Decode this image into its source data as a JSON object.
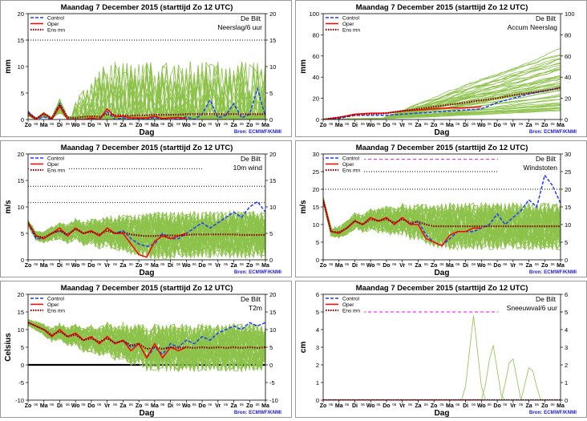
{
  "colors": {
    "background": "#ffffff",
    "panel_border": "#9a9a9a",
    "ensemble": "#8cc24a",
    "control": "#1e3cff",
    "oper": "#ff0000",
    "ensmean": "#8b0000",
    "threshold": "#ff00ff",
    "source": "#2222cc",
    "zero_line": "#000000"
  },
  "legend_labels": [
    "Control",
    "Oper",
    "Ens mn"
  ],
  "source": "Bron: ECMWF/KNMI",
  "xlabel": "Dag",
  "day_labels": [
    "Zo",
    "Ma",
    "Di",
    "Wo",
    "Do",
    "Vr",
    "Za",
    "Zo",
    "Ma",
    "Di",
    "Wo",
    "Do",
    "Vr",
    "Za",
    "Zo",
    "Ma"
  ],
  "sub_tick_label": "06",
  "chart_data": [
    {
      "id": "neerslag",
      "type": "line",
      "title": "Maandag   7 December  2015   (starttijd  Zo 12 UTC)",
      "station": "De Bilt",
      "parameter": "Neerslag/6 uur",
      "ylabel": "mm",
      "xlabel": "Dag",
      "ylim": [
        0,
        20
      ],
      "yticks": [
        0,
        5,
        10,
        15,
        20
      ],
      "hlines": [
        {
          "value": 15,
          "style": "dotted",
          "color": "#000000"
        }
      ],
      "ensemble_count": 50,
      "ensemble_style": "spiky",
      "series": [
        {
          "name": "Control",
          "x_days": [
            0,
            0.5,
            1,
            1.5,
            2,
            2.5,
            3,
            3.5,
            4,
            4.5,
            5,
            5.5,
            6,
            6.5,
            7,
            7.5,
            8,
            8.5,
            9,
            9.5,
            10,
            10.5,
            11,
            11.5,
            12,
            12.5,
            13,
            13.5,
            14,
            14.5,
            15
          ],
          "values": [
            1.5,
            0,
            0.5,
            0,
            3,
            0,
            0,
            0,
            0.2,
            0,
            1.5,
            0,
            0.3,
            0,
            0.2,
            0,
            0.4,
            0,
            0.3,
            0,
            0.5,
            0,
            1,
            3.7,
            0.3,
            0.8,
            3,
            0.3,
            1,
            5.8,
            0.6
          ]
        },
        {
          "name": "Oper",
          "x_days": [
            0,
            0.5,
            1,
            1.5,
            2,
            2.5,
            3,
            3.5,
            4,
            4.5,
            5,
            5.5,
            6,
            6.5,
            7,
            7.5,
            8,
            8.5,
            9,
            9.5,
            10
          ],
          "values": [
            1,
            0,
            1.2,
            0,
            2.5,
            0,
            0,
            0,
            0.3,
            0,
            2,
            0.5,
            0.6,
            0.3,
            0.3,
            0.3,
            0.6,
            0.2,
            0.3,
            0.4,
            0.2
          ]
        },
        {
          "name": "Ens mn",
          "x_days": [
            0,
            0.5,
            1,
            1.5,
            2,
            2.5,
            3,
            3.5,
            4,
            4.5,
            5,
            5.5,
            6,
            6.5,
            7,
            7.5,
            8,
            8.5,
            9,
            9.5,
            10,
            10.5,
            11,
            11.5,
            12,
            12.5,
            13,
            13.5,
            14,
            14.5,
            15
          ],
          "values": [
            1.2,
            0.2,
            1,
            0.3,
            2.8,
            0.4,
            0.3,
            0.5,
            0.6,
            0.5,
            1,
            0.8,
            0.8,
            0.7,
            0.8,
            0.8,
            0.9,
            0.9,
            0.9,
            0.9,
            1,
            1,
            1,
            1,
            1,
            1,
            1,
            1,
            1,
            1,
            1
          ]
        }
      ]
    },
    {
      "id": "accum",
      "type": "line",
      "title": "Maandag   7 December  2015   (starttijd  Zo 12 UTC)",
      "station": "De Bilt",
      "parameter": "Accum Neerslag",
      "ylabel": "mm",
      "xlabel": "Dag",
      "ylim": [
        0,
        100
      ],
      "yticks": [
        0,
        20,
        40,
        60,
        80,
        100
      ],
      "hlines": [],
      "ensemble_count": 50,
      "ensemble_style": "cumulative",
      "series": [
        {
          "name": "Control",
          "x_days": [
            0,
            1,
            2,
            3,
            4,
            5,
            6,
            7,
            8,
            9,
            10,
            11,
            12,
            13,
            14,
            15
          ],
          "values": [
            0,
            1,
            4,
            4,
            4,
            5,
            6,
            7,
            8,
            9,
            10,
            16,
            20,
            24,
            27,
            30
          ]
        },
        {
          "name": "Oper",
          "x_days": [
            0,
            1,
            2,
            3,
            4,
            5,
            6,
            7,
            8,
            9,
            10
          ],
          "values": [
            0,
            2,
            5,
            6,
            6,
            8,
            9,
            10,
            11,
            11,
            12
          ]
        },
        {
          "name": "Ens mn",
          "x_days": [
            0,
            1,
            2,
            3,
            4,
            5,
            6,
            7,
            8,
            9,
            10,
            11,
            12,
            13,
            14,
            15
          ],
          "values": [
            0,
            2,
            4,
            5,
            6,
            8,
            10,
            12,
            14,
            16,
            18,
            20,
            23,
            25,
            27,
            30
          ]
        }
      ]
    },
    {
      "id": "wind",
      "type": "line",
      "title": "Maandag   7 December  2015   (starttijd  Zo 12 UTC)",
      "station": "De Bilt",
      "parameter": "10m wind",
      "ylabel": "m/s",
      "xlabel": "Dag",
      "ylim": [
        0,
        20
      ],
      "yticks": [
        0,
        5,
        10,
        15,
        20
      ],
      "hlines": [
        {
          "value": 10.8,
          "style": "dotted",
          "color": "#000000"
        },
        {
          "value": 13.9,
          "style": "dotted",
          "color": "#000000"
        },
        {
          "value": 17.2,
          "style": "dotted",
          "color": "#000000"
        }
      ],
      "ensemble_count": 50,
      "ensemble_style": "noisy",
      "series": [
        {
          "name": "Control",
          "x_days": [
            0,
            0.5,
            1,
            1.5,
            2,
            2.5,
            3,
            3.5,
            4,
            4.5,
            5,
            5.5,
            6,
            6.5,
            7,
            7.5,
            8,
            8.5,
            9,
            9.5,
            10,
            10.5,
            11,
            11.5,
            12,
            12.5,
            13,
            13.5,
            14,
            14.5,
            15
          ],
          "values": [
            7,
            4,
            4,
            5,
            5.5,
            4.5,
            6,
            5,
            5.5,
            4.5,
            6,
            5,
            5.5,
            4,
            3,
            2.5,
            3,
            5,
            4,
            4,
            5,
            6,
            7,
            6,
            7,
            8,
            9,
            8,
            10,
            11,
            9
          ]
        },
        {
          "name": "Oper",
          "x_days": [
            0,
            0.5,
            1,
            1.5,
            2,
            2.5,
            3,
            3.5,
            4,
            4.5,
            5,
            5.5,
            6,
            6.5,
            7,
            7.5,
            8,
            8.5,
            9,
            9.5,
            10
          ],
          "values": [
            7,
            4.5,
            4,
            5,
            6,
            4.5,
            6,
            5,
            5.5,
            4.5,
            6,
            5,
            5,
            3,
            1,
            0.5,
            3.5,
            4.5,
            4,
            4.5,
            5
          ]
        },
        {
          "name": "Ens mn",
          "x_days": [
            0,
            0.5,
            1,
            1.5,
            2,
            2.5,
            3,
            3.5,
            4,
            4.5,
            5,
            5.5,
            6,
            6.5,
            7,
            7.5,
            8,
            8.5,
            9,
            9.5,
            10,
            10.5,
            11,
            11.5,
            12,
            12.5,
            13,
            13.5,
            14,
            14.5,
            15
          ],
          "values": [
            7,
            4.5,
            4.2,
            5,
            5.5,
            4.8,
            5.8,
            5,
            5.3,
            4.8,
            5.5,
            5,
            5.2,
            4.8,
            4.6,
            4.5,
            4.5,
            4.6,
            4.6,
            4.6,
            4.7,
            4.8,
            4.8,
            4.8,
            4.8,
            4.8,
            4.8,
            4.7,
            4.7,
            4.7,
            4.7
          ]
        }
      ]
    },
    {
      "id": "windstoten",
      "type": "line",
      "title": "Maandag   7 December  2015   (starttijd  Zo 12 UTC)",
      "station": "De Bilt",
      "parameter": "Windstoten",
      "ylabel": "m/s",
      "xlabel": "Dag",
      "ylim": [
        0,
        30
      ],
      "yticks": [
        0,
        5,
        10,
        15,
        20,
        25,
        30
      ],
      "hlines": [
        {
          "value": 20,
          "style": "dotted",
          "color": "#000000"
        },
        {
          "value": 25,
          "style": "dotted",
          "color": "#000000"
        },
        {
          "value": 28.5,
          "style": "dashed",
          "color": "#ff00ff"
        }
      ],
      "ensemble_count": 50,
      "ensemble_style": "noisy",
      "series": [
        {
          "name": "Control",
          "x_days": [
            0,
            0.5,
            1,
            1.5,
            2,
            2.5,
            3,
            3.5,
            4,
            4.5,
            5,
            5.5,
            6,
            6.5,
            7,
            7.5,
            8,
            8.5,
            9,
            9.5,
            10,
            10.5,
            11,
            11.5,
            12,
            12.5,
            13,
            13.5,
            14,
            14.5,
            15
          ],
          "values": [
            17,
            8,
            7.5,
            9,
            11,
            10,
            12,
            11,
            12,
            10,
            12,
            10,
            11,
            7,
            5,
            4,
            6,
            8,
            8,
            8,
            9,
            10,
            13,
            10,
            12,
            14,
            17,
            15,
            24,
            21,
            16
          ]
        },
        {
          "name": "Oper",
          "x_days": [
            0,
            0.5,
            1,
            1.5,
            2,
            2.5,
            3,
            3.5,
            4,
            4.5,
            5,
            5.5,
            6,
            6.5,
            7,
            7.5,
            8,
            8.5,
            9,
            9.5,
            10
          ],
          "values": [
            17,
            8,
            7.5,
            9,
            11,
            10,
            12,
            11,
            12,
            10,
            12,
            10,
            10,
            6,
            5,
            4,
            7,
            8,
            8,
            9,
            9
          ]
        },
        {
          "name": "Ens mn",
          "x_days": [
            0,
            0.5,
            1,
            1.5,
            2,
            2.5,
            3,
            3.5,
            4,
            4.5,
            5,
            5.5,
            6,
            6.5,
            7,
            7.5,
            8,
            8.5,
            9,
            9.5,
            10,
            10.5,
            11,
            11.5,
            12,
            12.5,
            13,
            13.5,
            14,
            14.5,
            15
          ],
          "values": [
            17,
            8,
            7.8,
            9,
            11,
            10,
            11.5,
            11,
            11.5,
            10.5,
            11.5,
            10.5,
            10.8,
            10,
            9.5,
            9.5,
            9.5,
            9.5,
            9.5,
            9.5,
            9.5,
            9.5,
            9.5,
            9.5,
            9.5,
            9.5,
            9.5,
            9.5,
            9.5,
            9.5,
            9.5
          ]
        }
      ]
    },
    {
      "id": "t2m",
      "type": "line",
      "title": "Maandag   7 December  2015   (starttijd  Zo 12 UTC)",
      "station": "De Bilt",
      "parameter": "T2m",
      "ylabel": "Celsius",
      "xlabel": "Dag",
      "ylim": [
        -10,
        20
      ],
      "yticks": [
        -10,
        -5,
        0,
        5,
        10,
        15,
        20
      ],
      "hlines": [
        {
          "value": 0,
          "style": "solid",
          "color": "#000000"
        }
      ],
      "ensemble_count": 50,
      "ensemble_style": "noisy",
      "series": [
        {
          "name": "Control",
          "x_days": [
            0,
            0.5,
            1,
            1.5,
            2,
            2.5,
            3,
            3.5,
            4,
            4.5,
            5,
            5.5,
            6,
            6.5,
            7,
            7.5,
            8,
            8.5,
            9,
            9.5,
            10,
            10.5,
            11,
            11.5,
            12,
            12.5,
            13,
            13.5,
            14,
            14.5,
            15
          ],
          "values": [
            12,
            11,
            10,
            8,
            10,
            8,
            9,
            7,
            8,
            6,
            8,
            6,
            7,
            5,
            6,
            2,
            5,
            3,
            6,
            5,
            7,
            6,
            8,
            7,
            9,
            10,
            11,
            10,
            12,
            11,
            12
          ]
        },
        {
          "name": "Oper",
          "x_days": [
            0,
            0.5,
            1,
            1.5,
            2,
            2.5,
            3,
            3.5,
            4,
            4.5,
            5,
            5.5,
            6,
            6.5,
            7,
            7.5,
            8,
            8.5,
            9,
            9.5,
            10
          ],
          "values": [
            12,
            11,
            10,
            8,
            10,
            8,
            9,
            7,
            8,
            6,
            8,
            6,
            7,
            4,
            6,
            2,
            6,
            2,
            5,
            4,
            5
          ]
        },
        {
          "name": "Ens mn",
          "x_days": [
            0,
            0.5,
            1,
            1.5,
            2,
            2.5,
            3,
            3.5,
            4,
            4.5,
            5,
            5.5,
            6,
            6.5,
            7,
            7.5,
            8,
            8.5,
            9,
            9.5,
            10,
            10.5,
            11,
            11.5,
            12,
            12.5,
            13,
            13.5,
            14,
            14.5,
            15
          ],
          "values": [
            12,
            11,
            10,
            8.5,
            9.5,
            8,
            8.5,
            7,
            7.5,
            6.5,
            7.5,
            6.2,
            6.8,
            5.5,
            6,
            4.5,
            5,
            4.5,
            5,
            4.8,
            5,
            4.8,
            5,
            4.8,
            5,
            4.8,
            5,
            4.8,
            5,
            4.8,
            5
          ]
        }
      ]
    },
    {
      "id": "sneeuw",
      "type": "line",
      "title": "Maandag   7 December  2015   (starttijd  Zo 12 UTC)",
      "station": "De Bilt",
      "parameter": "Sneeuwval/6 uur",
      "ylabel": "cm",
      "xlabel": "Dag",
      "ylim": [
        0,
        6
      ],
      "yticks": [
        0,
        1,
        2,
        3,
        4,
        5,
        6
      ],
      "hlines": [
        {
          "value": 5,
          "style": "dashed",
          "color": "#ff00ff"
        }
      ],
      "ensemble_count": 50,
      "ensemble_style": "snow",
      "series": [
        {
          "name": "Control",
          "x_days": [
            0,
            15
          ],
          "values": [
            0,
            0
          ]
        },
        {
          "name": "Oper",
          "x_days": [
            0,
            10
          ],
          "values": [
            0,
            0
          ]
        },
        {
          "name": "Ens mn",
          "x_days": [
            0,
            15
          ],
          "values": [
            0,
            0
          ]
        }
      ]
    }
  ]
}
